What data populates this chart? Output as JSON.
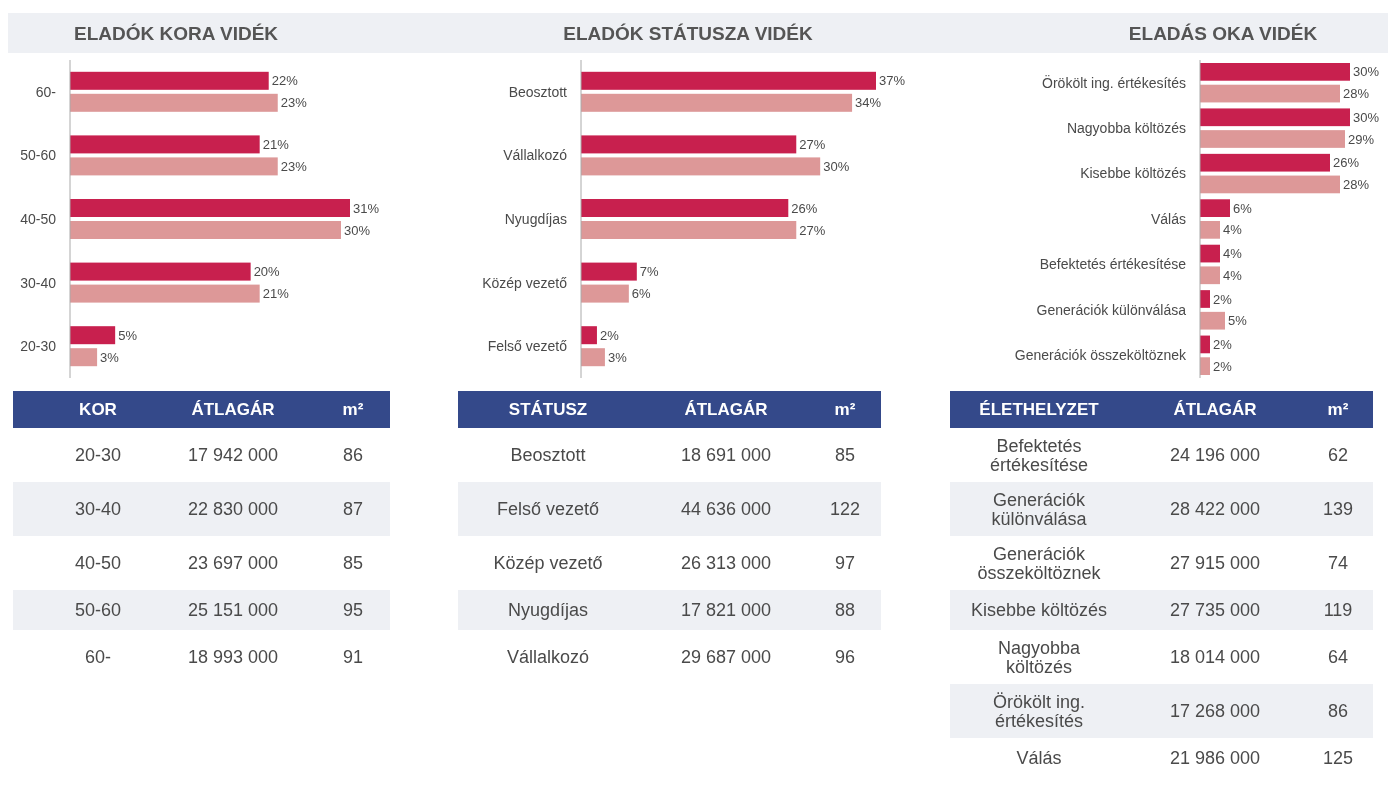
{
  "chart_data": [
    {
      "type": "bar",
      "orientation": "horizontal",
      "title": "ELADÓK KORA VIDÉK",
      "categories": [
        "60-",
        "50-60",
        "40-50",
        "30-40",
        "20-30"
      ],
      "series": [
        {
          "color": "#c8204e",
          "values": [
            22,
            21,
            31,
            20,
            5
          ],
          "value_labels": [
            "22%",
            "21%",
            "31%",
            "20%",
            "5%"
          ]
        },
        {
          "color": "#dd9898",
          "values": [
            23,
            23,
            30,
            21,
            3
          ],
          "value_labels": [
            "23%",
            "23%",
            "30%",
            "21%",
            "3%"
          ]
        }
      ]
    },
    {
      "type": "bar",
      "orientation": "horizontal",
      "title": "ELADÓK STÁTUSZA VIDÉK",
      "categories": [
        "Beosztott",
        "Vállalkozó",
        "Nyugdíjas",
        "Közép vezető",
        "Felső vezető"
      ],
      "series": [
        {
          "color": "#c8204e",
          "values": [
            37,
            27,
            26,
            7,
            2
          ],
          "value_labels": [
            "37%",
            "27%",
            "26%",
            "7%",
            "2%"
          ]
        },
        {
          "color": "#dd9898",
          "values": [
            34,
            30,
            27,
            6,
            3
          ],
          "value_labels": [
            "34%",
            "30%",
            "27%",
            "6%",
            "3%"
          ]
        }
      ]
    },
    {
      "type": "bar",
      "orientation": "horizontal",
      "title": "ELADÁS OKA VIDÉK",
      "categories": [
        "Örökölt ing. értékesítés",
        "Nagyobba költözés",
        "Kisebbe költözés",
        "Válás",
        "Befektetés értékesítése",
        "Generációk különválása",
        "Generációk összeköltöznek"
      ],
      "series": [
        {
          "color": "#c8204e",
          "values": [
            30,
            30,
            26,
            6,
            4,
            2,
            2
          ],
          "value_labels": [
            "30%",
            "30%",
            "26%",
            "6%",
            "4%",
            "2%",
            "2%"
          ]
        },
        {
          "color": "#dd9898",
          "values": [
            28,
            29,
            28,
            4,
            4,
            5,
            2
          ],
          "value_labels": [
            "28%",
            "29%",
            "28%",
            "4%",
            "4%",
            "5%",
            "2%"
          ]
        }
      ]
    },
    {
      "type": "other",
      "xlabel": "KOR",
      "categories": [
        "20-30",
        "30-40",
        "40-50",
        "50-60",
        "60-"
      ],
      "series": [
        {
          "name": "ÁTLAGÁR",
          "values": [
            17942000,
            22830000,
            23697000,
            25151000,
            18993000
          ],
          "value_labels": [
            "17 942 000",
            "22 830 000",
            "23 697 000",
            "25 151 000",
            "18 993 000"
          ]
        },
        {
          "name": "m²",
          "values": [
            86,
            87,
            85,
            95,
            91
          ],
          "value_labels": [
            "86",
            "87",
            "85",
            "95",
            "91"
          ]
        }
      ]
    },
    {
      "type": "other",
      "xlabel": "STÁTUSZ",
      "categories": [
        "Beosztott",
        "Felső vezető",
        "Közép vezető",
        "Nyugdíjas",
        "Vállalkozó"
      ],
      "series": [
        {
          "name": "ÁTLAGÁR",
          "values": [
            18691000,
            44636000,
            26313000,
            17821000,
            29687000
          ],
          "value_labels": [
            "18 691 000",
            "44 636 000",
            "26 313 000",
            "17 821 000",
            "29 687 000"
          ]
        },
        {
          "name": "m²",
          "values": [
            85,
            122,
            97,
            88,
            96
          ],
          "value_labels": [
            "85",
            "122",
            "97",
            "88",
            "96"
          ]
        }
      ]
    },
    {
      "type": "other",
      "xlabel": "ÉLETHELYZET",
      "categories": [
        "Befektetés értékesítése",
        "Generációk különválása",
        "Generációk összeköltöznek",
        "Kisebbe költözés",
        "Nagyobba költözés",
        "Örökölt ing. értékesítés",
        "Válás"
      ],
      "series": [
        {
          "name": "ÁTLAGÁR",
          "values": [
            24196000,
            28422000,
            27915000,
            27735000,
            18014000,
            17268000,
            21986000
          ],
          "value_labels": [
            "24 196 000",
            "28 422 000",
            "27 915 000",
            "27 735 000",
            "18 014 000",
            "17 268 000",
            "21 986 000"
          ]
        },
        {
          "name": "m²",
          "values": [
            62,
            139,
            74,
            119,
            64,
            86,
            125
          ],
          "value_labels": [
            "62",
            "139",
            "74",
            "119",
            "64",
            "86",
            "125"
          ]
        }
      ]
    }
  ]
}
